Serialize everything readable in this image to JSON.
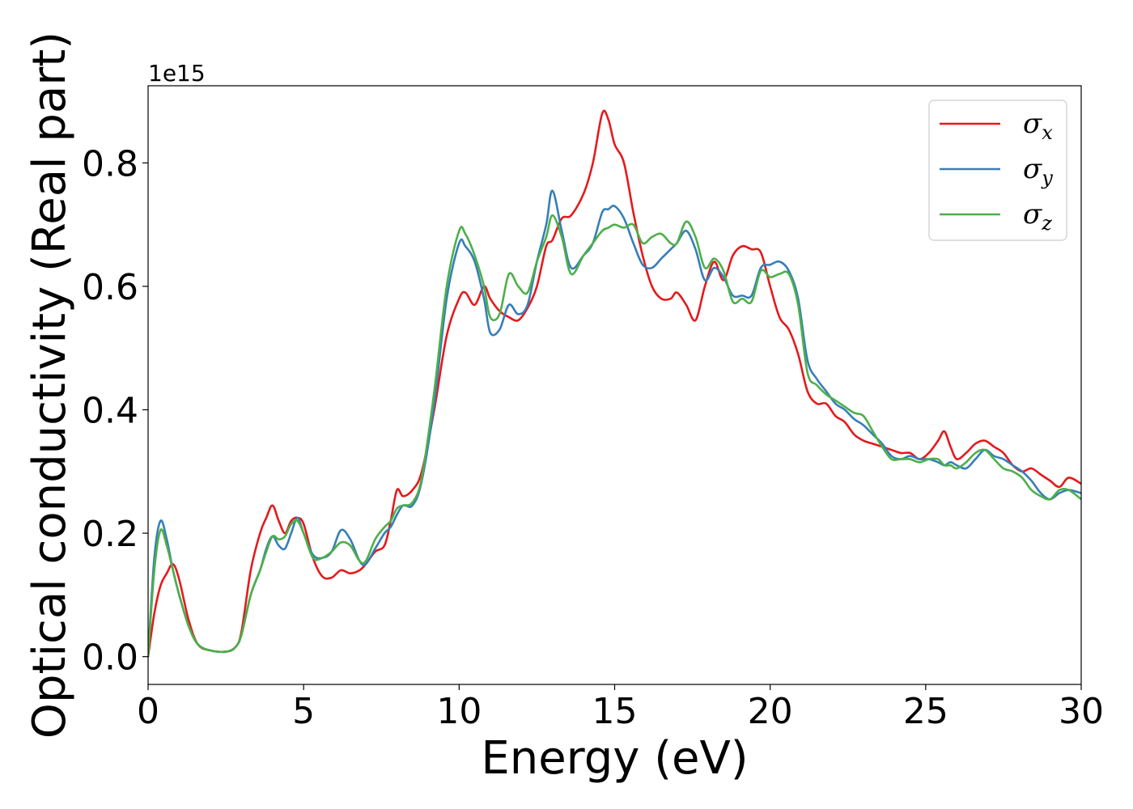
{
  "chart_data": {
    "type": "line",
    "title": "",
    "xlabel": "Energy (eV)",
    "ylabel": "Optical conductivity (Real part)",
    "y_offset_text": "1e15",
    "xlim": [
      0,
      30
    ],
    "ylim": [
      -0.045,
      0.925
    ],
    "xticks": [
      0,
      5,
      10,
      15,
      20,
      25,
      30
    ],
    "xtick_labels": [
      "0",
      "5",
      "10",
      "15",
      "20",
      "25",
      "30"
    ],
    "yticks": [
      0.0,
      0.2,
      0.4,
      0.6,
      0.8
    ],
    "ytick_labels": [
      "0.0",
      "0.2",
      "0.4",
      "0.6",
      "0.8"
    ],
    "grid": false,
    "legend_position": "top-right",
    "series": [
      {
        "name": "σx",
        "symbol": "σ",
        "sub": "x",
        "color": "#e41a1c",
        "x": [
          0,
          0.2,
          0.4,
          0.6,
          0.8,
          1.0,
          1.3,
          1.6,
          2.0,
          2.5,
          2.8,
          3.0,
          3.3,
          3.6,
          3.8,
          4.0,
          4.2,
          4.4,
          4.6,
          4.8,
          5.0,
          5.3,
          5.6,
          5.9,
          6.2,
          6.5,
          6.8,
          7.0,
          7.3,
          7.6,
          7.8,
          8.0,
          8.2,
          8.5,
          8.8,
          9.2,
          9.6,
          10.0,
          10.2,
          10.5,
          10.8,
          11.0,
          11.3,
          11.6,
          11.9,
          12.2,
          12.5,
          12.8,
          13.0,
          13.3,
          13.6,
          14.0,
          14.3,
          14.6,
          14.8,
          15.0,
          15.3,
          15.6,
          15.9,
          16.2,
          16.5,
          16.8,
          17.0,
          17.3,
          17.6,
          17.9,
          18.2,
          18.5,
          18.8,
          19.1,
          19.4,
          19.7,
          20.0,
          20.3,
          20.6,
          20.9,
          21.2,
          21.5,
          21.8,
          22.1,
          22.4,
          22.7,
          23.0,
          23.3,
          23.6,
          23.9,
          24.2,
          24.5,
          24.8,
          25.1,
          25.4,
          25.6,
          25.8,
          26.0,
          26.3,
          26.6,
          26.9,
          27.2,
          27.5,
          27.8,
          28.1,
          28.4,
          28.7,
          29.0,
          29.3,
          29.6,
          30.0
        ],
        "y": [
          0.0,
          0.07,
          0.115,
          0.135,
          0.15,
          0.125,
          0.06,
          0.02,
          0.01,
          0.008,
          0.015,
          0.04,
          0.14,
          0.2,
          0.225,
          0.245,
          0.22,
          0.2,
          0.22,
          0.225,
          0.215,
          0.16,
          0.13,
          0.128,
          0.14,
          0.135,
          0.14,
          0.15,
          0.17,
          0.18,
          0.22,
          0.27,
          0.26,
          0.27,
          0.3,
          0.4,
          0.52,
          0.58,
          0.59,
          0.57,
          0.6,
          0.58,
          0.56,
          0.55,
          0.545,
          0.565,
          0.6,
          0.665,
          0.675,
          0.71,
          0.715,
          0.75,
          0.8,
          0.88,
          0.87,
          0.83,
          0.8,
          0.72,
          0.65,
          0.6,
          0.58,
          0.58,
          0.59,
          0.57,
          0.545,
          0.6,
          0.64,
          0.61,
          0.65,
          0.665,
          0.66,
          0.655,
          0.6,
          0.55,
          0.53,
          0.49,
          0.43,
          0.41,
          0.41,
          0.39,
          0.38,
          0.36,
          0.35,
          0.345,
          0.34,
          0.335,
          0.33,
          0.33,
          0.32,
          0.33,
          0.35,
          0.365,
          0.34,
          0.32,
          0.33,
          0.345,
          0.35,
          0.34,
          0.33,
          0.31,
          0.3,
          0.305,
          0.295,
          0.285,
          0.275,
          0.29,
          0.28
        ]
      },
      {
        "name": "σy",
        "symbol": "σ",
        "sub": "y",
        "color": "#377eb8",
        "x": [
          0,
          0.2,
          0.4,
          0.6,
          0.8,
          1.0,
          1.3,
          1.6,
          2.0,
          2.5,
          2.8,
          3.0,
          3.3,
          3.6,
          3.8,
          4.0,
          4.2,
          4.4,
          4.6,
          4.8,
          5.0,
          5.3,
          5.6,
          5.9,
          6.2,
          6.5,
          6.8,
          7.0,
          7.3,
          7.6,
          7.8,
          8.0,
          8.2,
          8.5,
          8.8,
          9.2,
          9.6,
          10.0,
          10.2,
          10.5,
          10.8,
          11.0,
          11.3,
          11.6,
          11.9,
          12.2,
          12.5,
          12.8,
          13.0,
          13.3,
          13.6,
          14.0,
          14.3,
          14.6,
          14.8,
          15.0,
          15.3,
          15.6,
          15.9,
          16.2,
          16.5,
          16.8,
          17.0,
          17.3,
          17.6,
          17.9,
          18.2,
          18.5,
          18.8,
          19.1,
          19.4,
          19.7,
          20.0,
          20.3,
          20.6,
          20.9,
          21.2,
          21.5,
          21.8,
          22.1,
          22.4,
          22.7,
          23.0,
          23.3,
          23.6,
          23.9,
          24.2,
          24.5,
          24.8,
          25.1,
          25.4,
          25.6,
          25.8,
          26.0,
          26.3,
          26.6,
          26.9,
          27.2,
          27.5,
          27.8,
          28.1,
          28.4,
          28.7,
          29.0,
          29.3,
          29.6,
          30.0
        ],
        "y": [
          0.0,
          0.16,
          0.22,
          0.19,
          0.14,
          0.1,
          0.05,
          0.02,
          0.01,
          0.008,
          0.015,
          0.035,
          0.1,
          0.14,
          0.175,
          0.195,
          0.18,
          0.175,
          0.2,
          0.225,
          0.2,
          0.165,
          0.16,
          0.17,
          0.205,
          0.19,
          0.155,
          0.15,
          0.175,
          0.2,
          0.21,
          0.23,
          0.245,
          0.245,
          0.285,
          0.41,
          0.58,
          0.67,
          0.665,
          0.64,
          0.58,
          0.525,
          0.53,
          0.57,
          0.555,
          0.57,
          0.64,
          0.7,
          0.755,
          0.69,
          0.63,
          0.65,
          0.67,
          0.72,
          0.725,
          0.73,
          0.71,
          0.67,
          0.635,
          0.63,
          0.645,
          0.66,
          0.67,
          0.69,
          0.66,
          0.61,
          0.63,
          0.615,
          0.585,
          0.585,
          0.585,
          0.63,
          0.635,
          0.64,
          0.625,
          0.58,
          0.48,
          0.45,
          0.43,
          0.41,
          0.4,
          0.385,
          0.375,
          0.36,
          0.345,
          0.325,
          0.32,
          0.325,
          0.32,
          0.32,
          0.315,
          0.31,
          0.315,
          0.31,
          0.305,
          0.32,
          0.335,
          0.325,
          0.32,
          0.31,
          0.3,
          0.285,
          0.265,
          0.255,
          0.265,
          0.27,
          0.265
        ]
      },
      {
        "name": "σz",
        "symbol": "σ",
        "sub": "z",
        "color": "#4daf4a",
        "x": [
          0,
          0.2,
          0.4,
          0.6,
          0.8,
          1.0,
          1.3,
          1.6,
          2.0,
          2.5,
          2.8,
          3.0,
          3.3,
          3.6,
          3.8,
          4.0,
          4.2,
          4.4,
          4.6,
          4.8,
          5.0,
          5.3,
          5.6,
          5.9,
          6.2,
          6.5,
          6.8,
          7.0,
          7.3,
          7.6,
          7.8,
          8.0,
          8.2,
          8.5,
          8.8,
          9.2,
          9.6,
          10.0,
          10.2,
          10.5,
          10.8,
          11.0,
          11.3,
          11.6,
          11.9,
          12.2,
          12.5,
          12.8,
          13.0,
          13.3,
          13.6,
          14.0,
          14.3,
          14.6,
          14.8,
          15.0,
          15.3,
          15.6,
          15.9,
          16.2,
          16.5,
          16.8,
          17.0,
          17.3,
          17.6,
          17.9,
          18.2,
          18.5,
          18.8,
          19.1,
          19.4,
          19.7,
          20.0,
          20.3,
          20.6,
          20.9,
          21.2,
          21.5,
          21.8,
          22.1,
          22.4,
          22.7,
          23.0,
          23.3,
          23.6,
          23.9,
          24.2,
          24.5,
          24.8,
          25.1,
          25.4,
          25.6,
          25.8,
          26.0,
          26.3,
          26.6,
          26.9,
          27.2,
          27.5,
          27.8,
          28.1,
          28.4,
          28.7,
          29.0,
          29.3,
          29.6,
          30.0
        ],
        "y": [
          0.0,
          0.14,
          0.205,
          0.18,
          0.14,
          0.1,
          0.05,
          0.02,
          0.01,
          0.008,
          0.015,
          0.035,
          0.1,
          0.14,
          0.17,
          0.195,
          0.19,
          0.195,
          0.215,
          0.22,
          0.2,
          0.16,
          0.16,
          0.17,
          0.185,
          0.18,
          0.155,
          0.155,
          0.19,
          0.21,
          0.22,
          0.24,
          0.245,
          0.25,
          0.29,
          0.43,
          0.6,
          0.69,
          0.685,
          0.65,
          0.6,
          0.55,
          0.555,
          0.62,
          0.6,
          0.59,
          0.64,
          0.68,
          0.715,
          0.68,
          0.62,
          0.65,
          0.67,
          0.69,
          0.695,
          0.7,
          0.695,
          0.7,
          0.67,
          0.68,
          0.685,
          0.67,
          0.67,
          0.705,
          0.68,
          0.63,
          0.645,
          0.625,
          0.575,
          0.58,
          0.575,
          0.625,
          0.615,
          0.62,
          0.62,
          0.57,
          0.46,
          0.44,
          0.425,
          0.415,
          0.405,
          0.395,
          0.39,
          0.365,
          0.34,
          0.32,
          0.32,
          0.32,
          0.315,
          0.32,
          0.32,
          0.31,
          0.31,
          0.305,
          0.315,
          0.33,
          0.335,
          0.32,
          0.305,
          0.3,
          0.29,
          0.27,
          0.26,
          0.255,
          0.27,
          0.27,
          0.255
        ]
      }
    ]
  }
}
